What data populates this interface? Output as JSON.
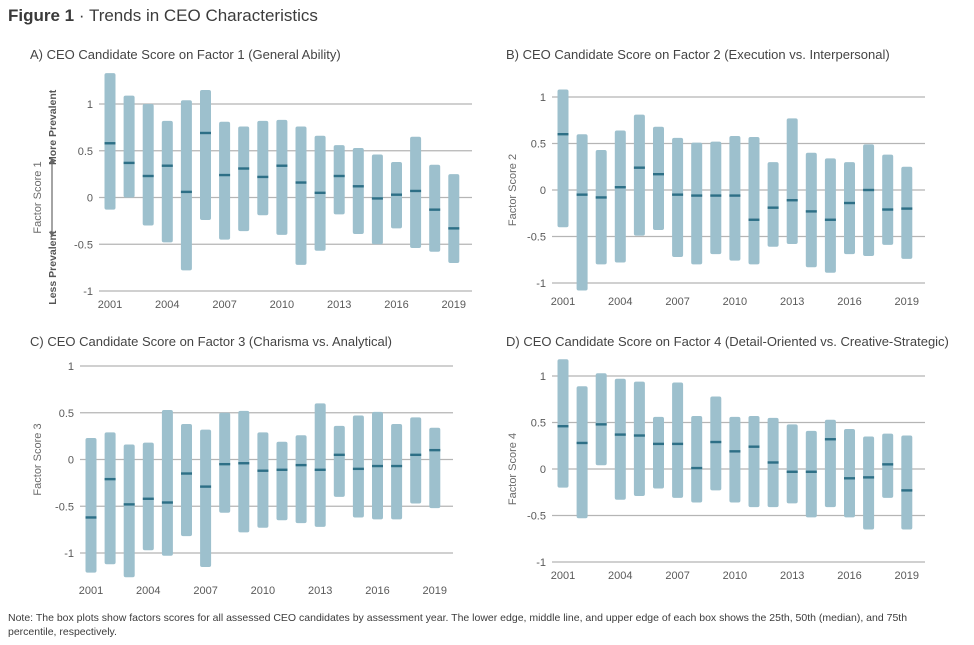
{
  "figure": {
    "label": "Figure 1",
    "separator": " · ",
    "title": "Trends in CEO Characteristics"
  },
  "note": "Note: The box plots show factors scores for all assessed CEO candidates by assessment year. The lower edge, middle line, and upper edge of each box shows the 25th, 50th (median), and 75th percentile, respectively.",
  "colors": {
    "box": "#9dc0cd",
    "median": "#2d6f86",
    "grid": "#b5b5b5"
  },
  "chart_data": [
    {
      "type": "box",
      "panel": "A",
      "title": "A) CEO Candidate Score on Factor 1 (General Ability)",
      "ylabel": "Factor Score 1",
      "ylabel_top": "More Prevalent",
      "ylabel_bottom": "Less Prevalent",
      "ylim": [
        -1,
        1
      ],
      "yticks": [
        1,
        0.5,
        0,
        -0.5,
        -1
      ],
      "ytick_labels": [
        "1",
        "0.5",
        "0",
        "-0.5",
        "-1"
      ],
      "xtick_labels": [
        "2001",
        "2004",
        "2007",
        "2010",
        "2013",
        "2016",
        "2019"
      ],
      "years": [
        2001,
        2002,
        2003,
        2004,
        2005,
        2006,
        2007,
        2008,
        2009,
        2010,
        2011,
        2012,
        2013,
        2014,
        2015,
        2016,
        2017,
        2018,
        2019
      ],
      "q1": [
        -0.13,
        0.0,
        -0.3,
        -0.48,
        -0.78,
        -0.24,
        -0.45,
        -0.36,
        -0.19,
        -0.4,
        -0.72,
        -0.57,
        -0.18,
        -0.39,
        -0.5,
        -0.33,
        -0.54,
        -0.58,
        -0.7
      ],
      "median": [
        0.58,
        0.37,
        0.23,
        0.34,
        0.06,
        0.69,
        0.24,
        0.31,
        0.22,
        0.34,
        0.16,
        0.05,
        0.23,
        0.12,
        -0.01,
        0.03,
        0.07,
        -0.13,
        -0.33
      ],
      "q3": [
        1.33,
        1.09,
        1.0,
        0.82,
        1.04,
        1.15,
        0.81,
        0.76,
        0.82,
        0.83,
        0.76,
        0.66,
        0.56,
        0.53,
        0.46,
        0.38,
        0.65,
        0.35,
        0.25
      ]
    },
    {
      "type": "box",
      "panel": "B",
      "title": "B) CEO Candidate Score on Factor 2 (Execution vs. Interpersonal)",
      "ylabel": "Factor Score 2",
      "ylim": [
        -1,
        1
      ],
      "yticks": [
        1,
        0.5,
        0,
        -0.5,
        -1
      ],
      "ytick_labels": [
        "1",
        "0.5",
        "0",
        "-0.5",
        "-1"
      ],
      "xtick_labels": [
        "2001",
        "2004",
        "2007",
        "2010",
        "2013",
        "2016",
        "2019"
      ],
      "years": [
        2001,
        2002,
        2003,
        2004,
        2005,
        2006,
        2007,
        2008,
        2009,
        2010,
        2011,
        2012,
        2013,
        2014,
        2015,
        2016,
        2017,
        2018,
        2019
      ],
      "q1": [
        -0.4,
        -1.08,
        -0.8,
        -0.78,
        -0.49,
        -0.43,
        -0.72,
        -0.8,
        -0.69,
        -0.76,
        -0.8,
        -0.61,
        -0.58,
        -0.83,
        -0.89,
        -0.69,
        -0.71,
        -0.59,
        -0.74
      ],
      "median": [
        0.6,
        -0.05,
        -0.08,
        0.03,
        0.24,
        0.17,
        -0.05,
        -0.06,
        -0.06,
        -0.06,
        -0.32,
        -0.19,
        -0.11,
        -0.23,
        -0.32,
        -0.14,
        0.0,
        -0.21,
        -0.2
      ],
      "q3": [
        1.08,
        0.6,
        0.43,
        0.64,
        0.81,
        0.68,
        0.56,
        0.51,
        0.52,
        0.58,
        0.57,
        0.3,
        0.77,
        0.4,
        0.34,
        0.3,
        0.49,
        0.38,
        0.25
      ]
    },
    {
      "type": "box",
      "panel": "C",
      "title": "C) CEO Candidate Score on Factor 3 (Charisma vs. Analytical)",
      "ylabel": "Factor Score 3",
      "ylim": [
        -1,
        1
      ],
      "yticks": [
        1,
        0.5,
        0,
        -0.5,
        -1
      ],
      "ytick_labels": [
        "1",
        "0.5",
        "0",
        "-0.5",
        "-1"
      ],
      "xtick_labels": [
        "2001",
        "2004",
        "2007",
        "2010",
        "2013",
        "2016",
        "2019"
      ],
      "years": [
        2001,
        2002,
        2003,
        2004,
        2005,
        2006,
        2007,
        2008,
        2009,
        2010,
        2011,
        2012,
        2013,
        2014,
        2015,
        2016,
        2017,
        2018,
        2019
      ],
      "q1": [
        -1.21,
        -1.12,
        -1.26,
        -0.97,
        -1.03,
        -0.82,
        -1.15,
        -0.57,
        -0.78,
        -0.73,
        -0.65,
        -0.68,
        -0.72,
        -0.4,
        -0.62,
        -0.64,
        -0.64,
        -0.47,
        -0.52
      ],
      "median": [
        -0.62,
        -0.21,
        -0.48,
        -0.42,
        -0.46,
        -0.15,
        -0.29,
        -0.05,
        -0.04,
        -0.12,
        -0.11,
        -0.06,
        -0.11,
        0.05,
        -0.1,
        -0.07,
        -0.07,
        0.05,
        0.1
      ],
      "q3": [
        0.23,
        0.29,
        0.16,
        0.18,
        0.53,
        0.38,
        0.32,
        0.5,
        0.52,
        0.29,
        0.19,
        0.26,
        0.6,
        0.36,
        0.47,
        0.51,
        0.38,
        0.45,
        0.34
      ]
    },
    {
      "type": "box",
      "panel": "D",
      "title": "D) CEO Candidate Score on Factor 4 (Detail-Oriented vs. Creative-Strategic)",
      "ylabel": "Factor Score 4",
      "ylim": [
        -1,
        1
      ],
      "yticks": [
        1,
        0.5,
        0,
        -0.5,
        -1
      ],
      "ytick_labels": [
        "1",
        "0.5",
        "0",
        "-0.5",
        "-1"
      ],
      "xtick_labels": [
        "2001",
        "2004",
        "2007",
        "2010",
        "2013",
        "2016",
        "2019"
      ],
      "years": [
        2001,
        2002,
        2003,
        2004,
        2005,
        2006,
        2007,
        2008,
        2009,
        2010,
        2011,
        2012,
        2013,
        2014,
        2015,
        2016,
        2017,
        2018,
        2019
      ],
      "q1": [
        -0.2,
        -0.53,
        0.04,
        -0.33,
        -0.29,
        -0.21,
        -0.31,
        -0.36,
        -0.23,
        -0.36,
        -0.41,
        -0.41,
        -0.37,
        -0.52,
        -0.41,
        -0.52,
        -0.65,
        -0.31,
        -0.65
      ],
      "median": [
        0.46,
        0.28,
        0.48,
        0.37,
        0.36,
        0.27,
        0.27,
        0.01,
        0.29,
        0.19,
        0.24,
        0.07,
        -0.03,
        -0.03,
        0.32,
        -0.1,
        -0.09,
        0.05,
        -0.23
      ],
      "q3": [
        1.18,
        0.89,
        1.03,
        0.97,
        0.94,
        0.56,
        0.93,
        0.57,
        0.78,
        0.56,
        0.57,
        0.55,
        0.48,
        0.41,
        0.53,
        0.43,
        0.35,
        0.38,
        0.36
      ]
    }
  ]
}
